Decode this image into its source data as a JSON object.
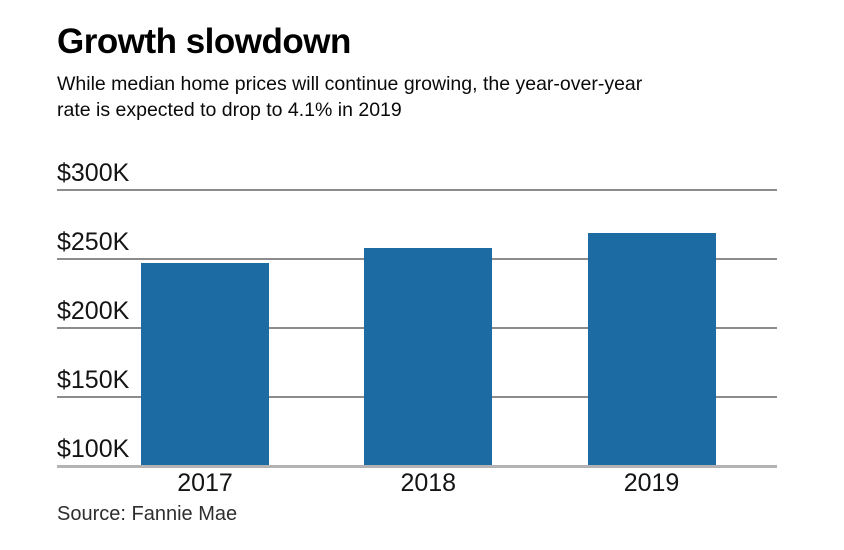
{
  "header": {
    "title": "Growth slowdown",
    "subtitle_lines": [
      "While median home prices will continue growing, the year-over-year",
      "rate is expected to drop to 4.1% in 2019"
    ]
  },
  "chart_data": {
    "type": "bar",
    "title": "Growth slowdown",
    "subtitle": "While median home prices will continue growing, the year-over-year rate is expected to drop to 4.1% in 2019",
    "categories": [
      "2017",
      "2018",
      "2019"
    ],
    "values": [
      247,
      258,
      269
    ],
    "values_unit": "USD thousands",
    "ylim": [
      100,
      300
    ],
    "yticks": [
      300,
      250,
      200,
      150,
      100
    ],
    "ytick_labels": [
      "$300K",
      "$250K",
      "$200K",
      "$150K",
      "$100K"
    ],
    "grid": true,
    "legend": false,
    "bar_color": "#1d6ba3",
    "gridline_color": "#8c8c8c",
    "axis_color": "#b3b3b3",
    "text_color": "#141414"
  },
  "footer": {
    "source": "Source: Fannie Mae"
  }
}
